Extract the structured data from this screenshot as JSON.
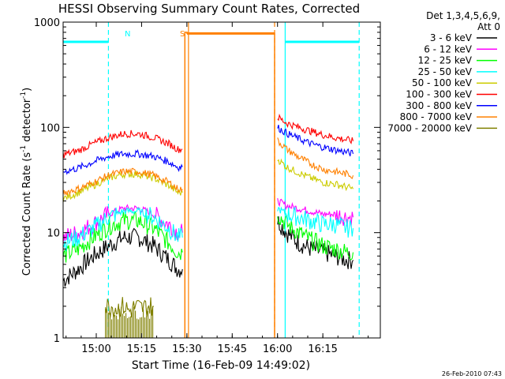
{
  "chart_data": {
    "type": "line",
    "title": "HESSI Observing Summary Count Rates, Corrected",
    "xlabel": "Start Time (16-Feb-09 14:49:02)",
    "ylabel_main": "Corrected Count Rate (s",
    "ylabel_sup1": "-1",
    "ylabel_mid": " detector",
    "ylabel_sup2": "-1",
    "ylabel_end": ")",
    "x_unit": "minutes after 14:49:02",
    "xlim": [
      0,
      105
    ],
    "ylim": [
      1,
      1000
    ],
    "yscale": "log",
    "x_ticks": [
      {
        "label": "15:00",
        "value": 10.97
      },
      {
        "label": "15:15",
        "value": 25.97
      },
      {
        "label": "15:30",
        "value": 40.97
      },
      {
        "label": "15:45",
        "value": 55.97
      },
      {
        "label": "16:00",
        "value": 70.97
      },
      {
        "label": "16:15",
        "value": 85.97
      }
    ],
    "y_ticks": [
      {
        "label": "1",
        "value": 1
      },
      {
        "label": "10",
        "value": 10
      },
      {
        "label": "100",
        "value": 100
      },
      {
        "label": "1000",
        "value": 1000
      }
    ],
    "legend": {
      "placement": "right",
      "header1": "Det 1,3,4,5,6,9,",
      "header2": "Att 0"
    },
    "series": [
      {
        "name": "3 - 6 keV",
        "color": "#000000",
        "segments": [
          {
            "x": [
              0,
              5,
              10,
              15,
              20,
              25,
              30,
              35,
              38,
              39.5
            ],
            "y": [
              3.5,
              4.5,
              6,
              7.5,
              9,
              9,
              7.5,
              5.5,
              4.5,
              4.5
            ]
          },
          {
            "x": [
              71,
              74,
              78,
              82,
              86,
              90,
              94,
              96
            ],
            "y": [
              13,
              10,
              8,
              7,
              6.5,
              6,
              5.5,
              5.5
            ]
          }
        ]
      },
      {
        "name": "6 - 12 keV",
        "color": "#ff00ff",
        "segments": [
          {
            "x": [
              0,
              5,
              10,
              15,
              20,
              25,
              30,
              35,
              38,
              39.5
            ],
            "y": [
              9,
              10,
              12,
              15,
              17,
              17,
              15,
              12,
              10,
              10
            ]
          },
          {
            "x": [
              71,
              74,
              78,
              82,
              86,
              90,
              94,
              96
            ],
            "y": [
              20,
              18,
              17,
              16,
              15,
              15,
              14,
              14
            ]
          }
        ]
      },
      {
        "name": "12 - 25 keV",
        "color": "#00ff00",
        "segments": [
          {
            "x": [
              0,
              5,
              10,
              15,
              20,
              25,
              30,
              35,
              38,
              39.5
            ],
            "y": [
              6,
              7,
              9,
              11.5,
              13,
              13,
              11,
              8,
              6.5,
              6.5
            ]
          },
          {
            "x": [
              71,
              74,
              78,
              82,
              86,
              90,
              94,
              96
            ],
            "y": [
              15,
              12,
              10,
              8.5,
              7.5,
              7,
              6.5,
              6.5
            ]
          }
        ]
      },
      {
        "name": "25 - 50 keV",
        "color": "#00ffff",
        "segments": [
          {
            "x": [
              0,
              5,
              10,
              15,
              20,
              25,
              30,
              35,
              38,
              39.5
            ],
            "y": [
              8,
              9,
              11,
              14,
              16,
              16,
              14,
              11,
              9,
              9
            ]
          },
          {
            "x": [
              71,
              74,
              78,
              82,
              86,
              90,
              94,
              96
            ],
            "y": [
              17,
              15,
              14,
              13,
              12,
              12,
              11,
              11
            ]
          }
        ]
      },
      {
        "name": "50 - 100 keV",
        "color": "#cccc00",
        "segments": [
          {
            "x": [
              0,
              5,
              10,
              15,
              20,
              25,
              30,
              35,
              38,
              39.5
            ],
            "y": [
              21,
              24,
              28,
              33,
              36,
              36,
              33,
              28,
              24,
              24
            ]
          },
          {
            "x": [
              71,
              74,
              78,
              82,
              86,
              90,
              94,
              96
            ],
            "y": [
              50,
              42,
              37,
              33,
              30,
              29,
              27,
              26
            ]
          }
        ]
      },
      {
        "name": "100 - 300 keV",
        "color": "#ff0000",
        "segments": [
          {
            "x": [
              0,
              5,
              10,
              15,
              20,
              25,
              30,
              35,
              38,
              39.5
            ],
            "y": [
              55,
              60,
              70,
              80,
              87,
              87,
              80,
              70,
              62,
              62
            ]
          },
          {
            "x": [
              71,
              74,
              78,
              82,
              86,
              90,
              94,
              96
            ],
            "y": [
              125,
              110,
              100,
              92,
              85,
              80,
              76,
              74
            ]
          }
        ]
      },
      {
        "name": "300 - 800 keV",
        "color": "#0000ff",
        "segments": [
          {
            "x": [
              0,
              5,
              10,
              15,
              20,
              25,
              30,
              35,
              38,
              39.5
            ],
            "y": [
              38,
              41,
              47,
              53,
              56,
              56,
              53,
              47,
              42,
              42
            ]
          },
          {
            "x": [
              71,
              74,
              78,
              82,
              86,
              90,
              94,
              96
            ],
            "y": [
              100,
              88,
              78,
              70,
              65,
              61,
              58,
              56
            ]
          }
        ]
      },
      {
        "name": "800 - 7000 keV",
        "color": "#ff8000",
        "segments": [
          {
            "x": [
              0,
              5,
              10,
              15,
              20,
              25,
              30,
              35,
              38,
              39.5
            ],
            "y": [
              24,
              26,
              30,
              35,
              38,
              38,
              35,
              30,
              26,
              26
            ]
          },
          {
            "x": [
              71,
              74,
              78,
              82,
              86,
              90,
              94,
              96
            ],
            "y": [
              75,
              62,
              52,
              45,
              40,
              38,
              36,
              35
            ]
          },
          {
            "x": [
              40.3,
              40.3,
              41,
              41,
              70,
              70
            ],
            "y": [
              1,
              800,
              800,
              780,
              780,
              1
            ]
          }
        ]
      },
      {
        "name": "7000 - 20000 keV",
        "color": "#808000",
        "segments": [
          {
            "x": [
              14,
              16,
              18,
              20,
              22,
              24,
              26,
              28,
              30
            ],
            "y": [
              2,
              2,
              1.9,
              2,
              1.8,
              2,
              1.9,
              2,
              2
            ]
          }
        ]
      }
    ],
    "markers": [
      {
        "label": "N",
        "color": "#00ffff",
        "x": 0,
        "x_end": 15,
        "y": 700
      },
      {
        "label": "S",
        "color": "#ff8000",
        "x": 41,
        "x_end": 70,
        "y": 780
      }
    ],
    "interval_lines": [
      {
        "color": "#00ffff",
        "style": "dashed",
        "x": 15
      },
      {
        "color": "#00ffff",
        "style": "solid",
        "x": 73.5
      },
      {
        "color": "#00ffff",
        "style": "dashed",
        "x": 98
      },
      {
        "color": "#ff8000",
        "style": "solid",
        "x": 41.5
      },
      {
        "color": "#ff8000",
        "style": "dashed",
        "x": 70
      }
    ],
    "cyan_top_segments": [
      {
        "x": [
          0,
          15
        ],
        "y": [
          650,
          650
        ]
      },
      {
        "x": [
          73.5,
          98
        ],
        "y": [
          650,
          650
        ]
      }
    ],
    "timestamp": "26-Feb-2010 07:43"
  }
}
